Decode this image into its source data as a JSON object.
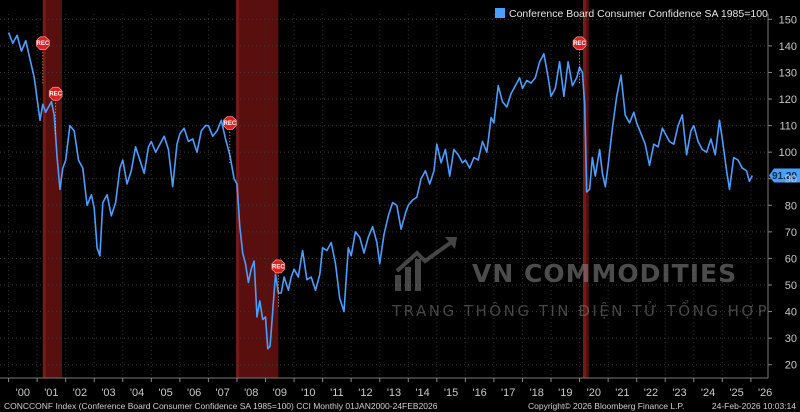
{
  "chart_data": {
    "type": "line",
    "title": "",
    "series": [
      {
        "name": "Conference Board Consumer Confidence SA 1985=100",
        "color": "#4a9eff",
        "points": [
          [
            2000.0,
            145
          ],
          [
            2000.15,
            141
          ],
          [
            2000.3,
            144
          ],
          [
            2000.45,
            138
          ],
          [
            2000.6,
            142
          ],
          [
            2000.75,
            135
          ],
          [
            2000.9,
            128
          ],
          [
            2001.0,
            120
          ],
          [
            2001.1,
            112
          ],
          [
            2001.2,
            118
          ],
          [
            2001.3,
            115
          ],
          [
            2001.4,
            117
          ],
          [
            2001.5,
            119
          ],
          [
            2001.6,
            114
          ],
          [
            2001.7,
            98
          ],
          [
            2001.8,
            86
          ],
          [
            2001.9,
            94
          ],
          [
            2002.0,
            97
          ],
          [
            2002.15,
            110
          ],
          [
            2002.3,
            108
          ],
          [
            2002.45,
            97
          ],
          [
            2002.6,
            94
          ],
          [
            2002.75,
            80
          ],
          [
            2002.9,
            84
          ],
          [
            2003.0,
            79
          ],
          [
            2003.1,
            64
          ],
          [
            2003.2,
            61
          ],
          [
            2003.3,
            81
          ],
          [
            2003.45,
            84
          ],
          [
            2003.6,
            76
          ],
          [
            2003.75,
            81
          ],
          [
            2003.9,
            94
          ],
          [
            2004.0,
            97
          ],
          [
            2004.15,
            88
          ],
          [
            2004.3,
            93
          ],
          [
            2004.45,
            102
          ],
          [
            2004.6,
            97
          ],
          [
            2004.75,
            92
          ],
          [
            2004.9,
            102
          ],
          [
            2005.0,
            104
          ],
          [
            2005.15,
            100
          ],
          [
            2005.3,
            103
          ],
          [
            2005.45,
            106
          ],
          [
            2005.6,
            101
          ],
          [
            2005.75,
            87
          ],
          [
            2005.9,
            103
          ],
          [
            2006.0,
            107
          ],
          [
            2006.15,
            109
          ],
          [
            2006.3,
            104
          ],
          [
            2006.45,
            105
          ],
          [
            2006.6,
            100
          ],
          [
            2006.75,
            108
          ],
          [
            2006.9,
            110
          ],
          [
            2007.0,
            110
          ],
          [
            2007.15,
            106
          ],
          [
            2007.3,
            108
          ],
          [
            2007.45,
            112
          ],
          [
            2007.6,
            105
          ],
          [
            2007.75,
            99
          ],
          [
            2007.9,
            90
          ],
          [
            2008.0,
            88
          ],
          [
            2008.1,
            72
          ],
          [
            2008.2,
            62
          ],
          [
            2008.3,
            58
          ],
          [
            2008.4,
            51
          ],
          [
            2008.5,
            56
          ],
          [
            2008.6,
            59
          ],
          [
            2008.7,
            38
          ],
          [
            2008.8,
            44
          ],
          [
            2008.9,
            37
          ],
          [
            2009.0,
            38
          ],
          [
            2009.08,
            26
          ],
          [
            2009.16,
            27
          ],
          [
            2009.25,
            40
          ],
          [
            2009.35,
            54
          ],
          [
            2009.45,
            47
          ],
          [
            2009.55,
            47
          ],
          [
            2009.65,
            53
          ],
          [
            2009.8,
            48
          ],
          [
            2009.9,
            53
          ],
          [
            2010.0,
            56
          ],
          [
            2010.15,
            53
          ],
          [
            2010.3,
            63
          ],
          [
            2010.45,
            52
          ],
          [
            2010.6,
            53
          ],
          [
            2010.75,
            48
          ],
          [
            2010.9,
            54
          ],
          [
            2011.0,
            64
          ],
          [
            2011.15,
            63
          ],
          [
            2011.3,
            66
          ],
          [
            2011.45,
            58
          ],
          [
            2011.6,
            45
          ],
          [
            2011.75,
            40
          ],
          [
            2011.9,
            64
          ],
          [
            2012.0,
            61
          ],
          [
            2012.15,
            70
          ],
          [
            2012.3,
            68
          ],
          [
            2012.45,
            62
          ],
          [
            2012.6,
            68
          ],
          [
            2012.75,
            72
          ],
          [
            2012.9,
            66
          ],
          [
            2013.0,
            58
          ],
          [
            2013.15,
            69
          ],
          [
            2013.3,
            76
          ],
          [
            2013.45,
            81
          ],
          [
            2013.6,
            80
          ],
          [
            2013.75,
            71
          ],
          [
            2013.9,
            77
          ],
          [
            2014.0,
            80
          ],
          [
            2014.15,
            82
          ],
          [
            2014.3,
            83
          ],
          [
            2014.45,
            90
          ],
          [
            2014.6,
            93
          ],
          [
            2014.75,
            88
          ],
          [
            2014.9,
            93
          ],
          [
            2015.0,
            103
          ],
          [
            2015.15,
            96
          ],
          [
            2015.3,
            101
          ],
          [
            2015.45,
            91
          ],
          [
            2015.6,
            101
          ],
          [
            2015.75,
            99
          ],
          [
            2015.9,
            96
          ],
          [
            2016.0,
            97
          ],
          [
            2016.15,
            94
          ],
          [
            2016.3,
            98
          ],
          [
            2016.45,
            97
          ],
          [
            2016.6,
            104
          ],
          [
            2016.75,
            100
          ],
          [
            2016.9,
            113
          ],
          [
            2017.0,
            111
          ],
          [
            2017.15,
            125
          ],
          [
            2017.3,
            119
          ],
          [
            2017.45,
            117
          ],
          [
            2017.6,
            122
          ],
          [
            2017.75,
            125
          ],
          [
            2017.9,
            128
          ],
          [
            2018.0,
            124
          ],
          [
            2018.15,
            127
          ],
          [
            2018.3,
            126
          ],
          [
            2018.45,
            128
          ],
          [
            2018.6,
            134
          ],
          [
            2018.75,
            137
          ],
          [
            2018.9,
            128
          ],
          [
            2019.0,
            121
          ],
          [
            2019.15,
            124
          ],
          [
            2019.3,
            134
          ],
          [
            2019.45,
            121
          ],
          [
            2019.6,
            134
          ],
          [
            2019.75,
            125
          ],
          [
            2019.9,
            128
          ],
          [
            2020.0,
            132
          ],
          [
            2020.1,
            130
          ],
          [
            2020.18,
            118
          ],
          [
            2020.25,
            85
          ],
          [
            2020.35,
            86
          ],
          [
            2020.45,
            98
          ],
          [
            2020.55,
            91
          ],
          [
            2020.7,
            101
          ],
          [
            2020.8,
            92
          ],
          [
            2020.9,
            87
          ],
          [
            2021.0,
            95
          ],
          [
            2021.15,
            109
          ],
          [
            2021.3,
            121
          ],
          [
            2021.45,
            129
          ],
          [
            2021.6,
            114
          ],
          [
            2021.75,
            111
          ],
          [
            2021.9,
            115
          ],
          [
            2022.0,
            111
          ],
          [
            2022.15,
            107
          ],
          [
            2022.3,
            103
          ],
          [
            2022.45,
            95
          ],
          [
            2022.6,
            103
          ],
          [
            2022.75,
            102
          ],
          [
            2022.9,
            109
          ],
          [
            2023.0,
            107
          ],
          [
            2023.15,
            104
          ],
          [
            2023.3,
            103
          ],
          [
            2023.45,
            110
          ],
          [
            2023.6,
            114
          ],
          [
            2023.75,
            99
          ],
          [
            2023.9,
            108
          ],
          [
            2024.0,
            110
          ],
          [
            2024.15,
            104
          ],
          [
            2024.3,
            101
          ],
          [
            2024.45,
            100
          ],
          [
            2024.6,
            105
          ],
          [
            2024.75,
            99
          ],
          [
            2024.9,
            112
          ],
          [
            2025.0,
            105
          ],
          [
            2025.15,
            93
          ],
          [
            2025.25,
            86
          ],
          [
            2025.4,
            98
          ],
          [
            2025.55,
            97
          ],
          [
            2025.7,
            94
          ],
          [
            2025.85,
            93
          ],
          [
            2025.95,
            89
          ],
          [
            2026.05,
            91.2
          ]
        ]
      }
    ],
    "last_value_label": "91.20",
    "x_axis": {
      "range": [
        1999.7,
        2026.6
      ],
      "tick_labels": [
        "'00",
        "'01",
        "'02",
        "'03",
        "'04",
        "'05",
        "'06",
        "'07",
        "'08",
        "'09",
        "'10",
        "'11",
        "'12",
        "'13",
        "'14",
        "'15",
        "'16",
        "'17",
        "'18",
        "'19",
        "'20",
        "'21",
        "'22",
        "'23",
        "'24",
        "'25",
        "'26"
      ]
    },
    "y_axis": {
      "range": [
        15,
        152
      ],
      "ticks": [
        20,
        30,
        40,
        50,
        60,
        70,
        80,
        90,
        100,
        110,
        120,
        130,
        140,
        150
      ],
      "side": "right"
    },
    "grid": "dotted-horizontal-and-vertical",
    "legend_placement": "top-right",
    "recessions": [
      {
        "start": 2001.2,
        "end": 2001.87,
        "label": "REC"
      },
      {
        "start": 2007.97,
        "end": 2009.45,
        "label": "REC"
      },
      {
        "start": 2020.12,
        "end": 2020.32,
        "label": "REC"
      }
    ],
    "recession_markers": [
      {
        "x": 2001.2,
        "y": 141,
        "label": "REC"
      },
      {
        "x": 2001.65,
        "y": 122,
        "label": "REC"
      },
      {
        "x": 2007.75,
        "y": 111,
        "label": "REC"
      },
      {
        "x": 2009.45,
        "y": 57,
        "label": "REC"
      },
      {
        "x": 2020.0,
        "y": 141,
        "label": "REC"
      }
    ]
  },
  "watermark": {
    "brand": "VN COMMODITIES",
    "tagline": "TRANG THÔNG TIN ĐIỆN TỬ TỔNG HỢP"
  },
  "footer": {
    "left": "CONCCONF Index (Conference Board Consumer Confidence SA 1985=100) CCI Monthly 01JAN2000-24FEB2026",
    "center": "Copyright© 2026 Bloomberg Finance L.P.",
    "right": "24-Feb-2026 10:03:14"
  }
}
